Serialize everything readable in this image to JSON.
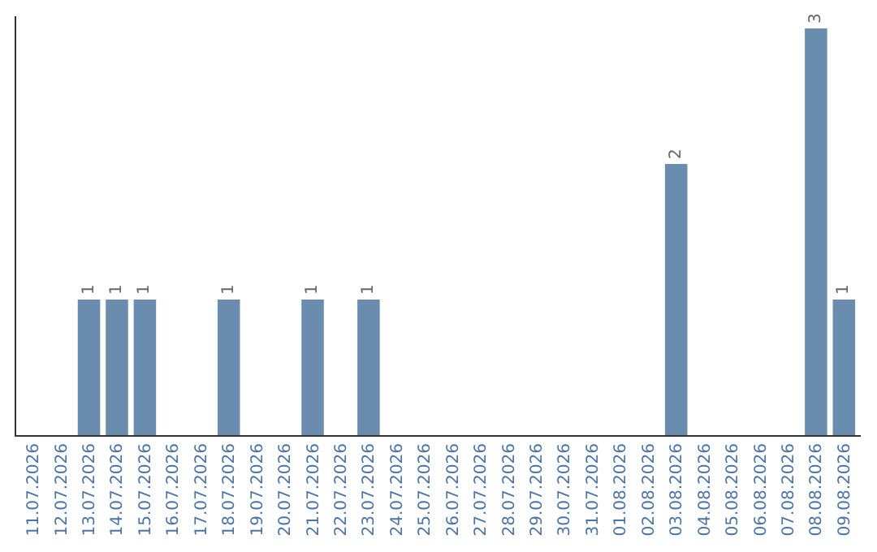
{
  "chart_data": {
    "type": "bar",
    "categories": [
      "11.07.2026",
      "12.07.2026",
      "13.07.2026",
      "14.07.2026",
      "15.07.2026",
      "16.07.2026",
      "17.07.2026",
      "18.07.2026",
      "19.07.2026",
      "20.07.2026",
      "21.07.2026",
      "22.07.2026",
      "23.07.2026",
      "24.07.2026",
      "25.07.2026",
      "26.07.2026",
      "27.07.2026",
      "28.07.2026",
      "29.07.2026",
      "30.07.2026",
      "31.07.2026",
      "01.08.2026",
      "02.08.2026",
      "03.08.2026",
      "04.08.2026",
      "05.08.2026",
      "06.08.2026",
      "07.08.2026",
      "08.08.2026",
      "09.08.2026"
    ],
    "values": [
      0,
      0,
      1,
      1,
      1,
      0,
      0,
      1,
      0,
      0,
      1,
      0,
      1,
      0,
      0,
      0,
      0,
      0,
      0,
      0,
      0,
      0,
      0,
      2,
      0,
      0,
      0,
      0,
      3,
      1
    ],
    "value_labels": [
      null,
      null,
      "1",
      "1",
      "1",
      null,
      null,
      "1",
      null,
      null,
      "1",
      null,
      "1",
      null,
      null,
      null,
      null,
      null,
      null,
      null,
      null,
      null,
      null,
      "2",
      null,
      null,
      null,
      null,
      "3",
      "1"
    ],
    "color": "#6a8caf",
    "tick_labels": "x"
  }
}
